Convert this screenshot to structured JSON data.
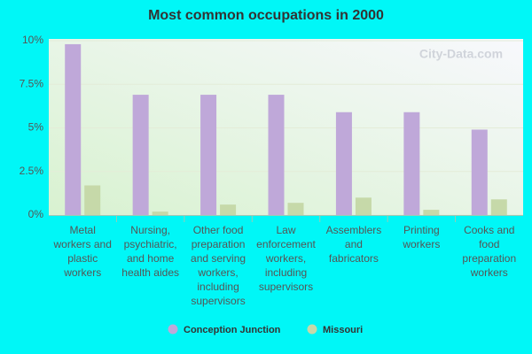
{
  "chart_data": {
    "type": "bar",
    "title": "Most common occupations in 2000",
    "watermark": "City-Data.com",
    "categories": [
      "Metal workers and plastic workers",
      "Nursing, psychiatric, and home health aides",
      "Other food preparation and serving workers, including supervisors",
      "Law enforcement workers, including supervisors",
      "Assemblers and fabricators",
      "Printing workers",
      "Cooks and food preparation workers"
    ],
    "series": [
      {
        "name": "Conception Junction",
        "color": "#bfa8d9",
        "values": [
          9.8,
          6.9,
          6.9,
          6.9,
          5.9,
          5.9,
          4.9
        ]
      },
      {
        "name": "Missouri",
        "color": "#c6d9a9",
        "values": [
          1.7,
          0.2,
          0.6,
          0.7,
          1.0,
          0.3,
          0.9
        ]
      }
    ],
    "ylim": [
      0,
      10
    ],
    "yticks": [
      {
        "value": 0,
        "label": "0%"
      },
      {
        "value": 2.5,
        "label": "2.5%"
      },
      {
        "value": 5,
        "label": "5%"
      },
      {
        "value": 7.5,
        "label": "7.5%"
      },
      {
        "value": 10,
        "label": "10%"
      }
    ],
    "grid": true,
    "legend": "bottom"
  }
}
